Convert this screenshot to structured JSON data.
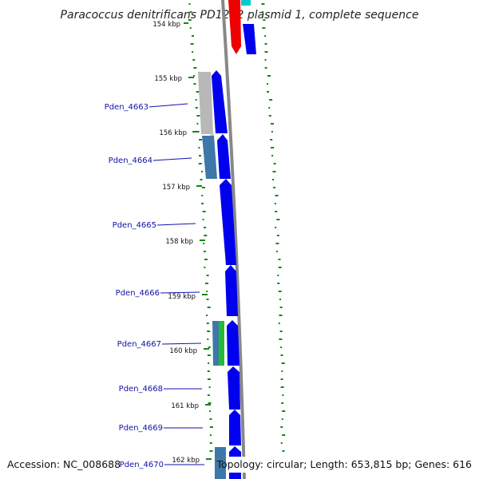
{
  "title": "Paracoccus denitrificans PD1222 plasmid 1, complete sequence",
  "footer": {
    "accession": "Accession: NC_008688",
    "topology": "Topology: circular; Length: 653,815 bp; Genes: 616"
  },
  "ticks": [
    "154 kbp",
    "155 kbp",
    "156 kbp",
    "157 kbp",
    "158 kbp",
    "159 kbp",
    "160 kbp",
    "161 kbp",
    "162 kbp"
  ],
  "genes": [
    "Pden_4663",
    "Pden_4664",
    "Pden_4665",
    "Pden_4666",
    "Pden_4667",
    "Pden_4668",
    "Pden_4669",
    "Pden_4670"
  ],
  "colors": {
    "forward_cds": "#0000ee",
    "reverse_cds": "#0000ee",
    "gray_feature": "#b8b8b8",
    "steelblue_feature": "#3e78a8",
    "green_feature": "#22bb33",
    "red_feature": "#ee0000",
    "cyan_feature": "#00cccc",
    "backbone": "#888888",
    "gc_dots": "#118811",
    "label": "#1111aa"
  }
}
